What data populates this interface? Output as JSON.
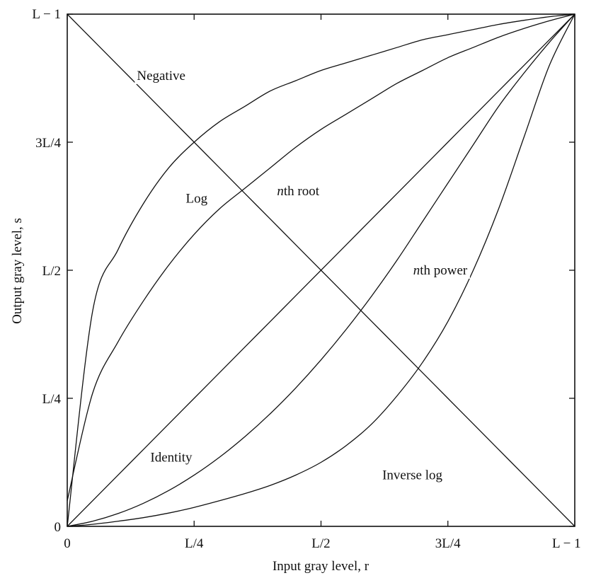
{
  "chart_data": {
    "type": "line",
    "xlabel": "Input gray level, r",
    "ylabel": "Output gray level, s",
    "xlim": [
      0,
      1
    ],
    "ylim": [
      0,
      1
    ],
    "grid": false,
    "x_ticks": [
      {
        "value": 0,
        "label": "0"
      },
      {
        "value": 0.25,
        "label": "L/4"
      },
      {
        "value": 0.5,
        "label": "L/2"
      },
      {
        "value": 0.75,
        "label": "3L/4"
      },
      {
        "value": 1,
        "label": "L − 1"
      }
    ],
    "y_ticks": [
      {
        "value": 0,
        "label": "0"
      },
      {
        "value": 0.25,
        "label": "L/4"
      },
      {
        "value": 0.5,
        "label": "L/2"
      },
      {
        "value": 0.75,
        "label": "3L/4"
      },
      {
        "value": 1,
        "label": "L − 1"
      }
    ],
    "x": [
      0,
      0.05,
      0.1,
      0.15,
      0.2,
      0.25,
      0.3,
      0.35,
      0.4,
      0.45,
      0.5,
      0.55,
      0.6,
      0.65,
      0.7,
      0.75,
      0.8,
      0.85,
      0.9,
      0.95,
      1
    ],
    "series": [
      {
        "name": "Negative",
        "values": [
          1,
          0.95,
          0.9,
          0.85,
          0.8,
          0.75,
          0.7,
          0.65,
          0.6,
          0.55,
          0.5,
          0.45,
          0.4,
          0.35,
          0.3,
          0.25,
          0.2,
          0.15,
          0.1,
          0.05,
          0
        ]
      },
      {
        "name": "Log",
        "values": [
          0,
          0.42,
          0.54,
          0.63,
          0.7,
          0.75,
          0.79,
          0.82,
          0.85,
          0.87,
          0.89,
          0.905,
          0.92,
          0.935,
          0.95,
          0.96,
          0.97,
          0.98,
          0.988,
          0.995,
          1
        ]
      },
      {
        "name": "nth root",
        "values": [
          0.05,
          0.26,
          0.36,
          0.44,
          0.51,
          0.57,
          0.62,
          0.66,
          0.7,
          0.74,
          0.775,
          0.805,
          0.835,
          0.865,
          0.89,
          0.915,
          0.935,
          0.955,
          0.972,
          0.987,
          1
        ]
      },
      {
        "name": "Identity",
        "values": [
          0,
          0.05,
          0.1,
          0.15,
          0.2,
          0.25,
          0.3,
          0.35,
          0.4,
          0.45,
          0.5,
          0.55,
          0.6,
          0.65,
          0.7,
          0.75,
          0.8,
          0.85,
          0.9,
          0.95,
          1
        ]
      },
      {
        "name": "nth power",
        "values": [
          0,
          0.01,
          0.025,
          0.045,
          0.07,
          0.1,
          0.135,
          0.175,
          0.22,
          0.27,
          0.325,
          0.385,
          0.45,
          0.52,
          0.595,
          0.67,
          0.745,
          0.82,
          0.885,
          0.945,
          1
        ]
      },
      {
        "name": "Inverse log",
        "values": [
          0,
          0.004,
          0.01,
          0.017,
          0.026,
          0.037,
          0.05,
          0.064,
          0.08,
          0.1,
          0.125,
          0.158,
          0.2,
          0.255,
          0.32,
          0.4,
          0.5,
          0.62,
          0.76,
          0.9,
          1
        ]
      }
    ],
    "annotations": [
      {
        "series": "Negative",
        "text": "Negative",
        "x": 0.185,
        "y": 0.88
      },
      {
        "series": "Log",
        "text": "Log",
        "x": 0.255,
        "y": 0.64
      },
      {
        "series": "nth root",
        "text": "nth root",
        "x": 0.455,
        "y": 0.655
      },
      {
        "series": "Identity",
        "text": "Identity",
        "x": 0.205,
        "y": 0.135
      },
      {
        "series": "nth power",
        "text": "nth power",
        "x": 0.735,
        "y": 0.5
      },
      {
        "series": "Inverse log",
        "text": "Inverse log",
        "x": 0.68,
        "y": 0.1
      }
    ]
  }
}
